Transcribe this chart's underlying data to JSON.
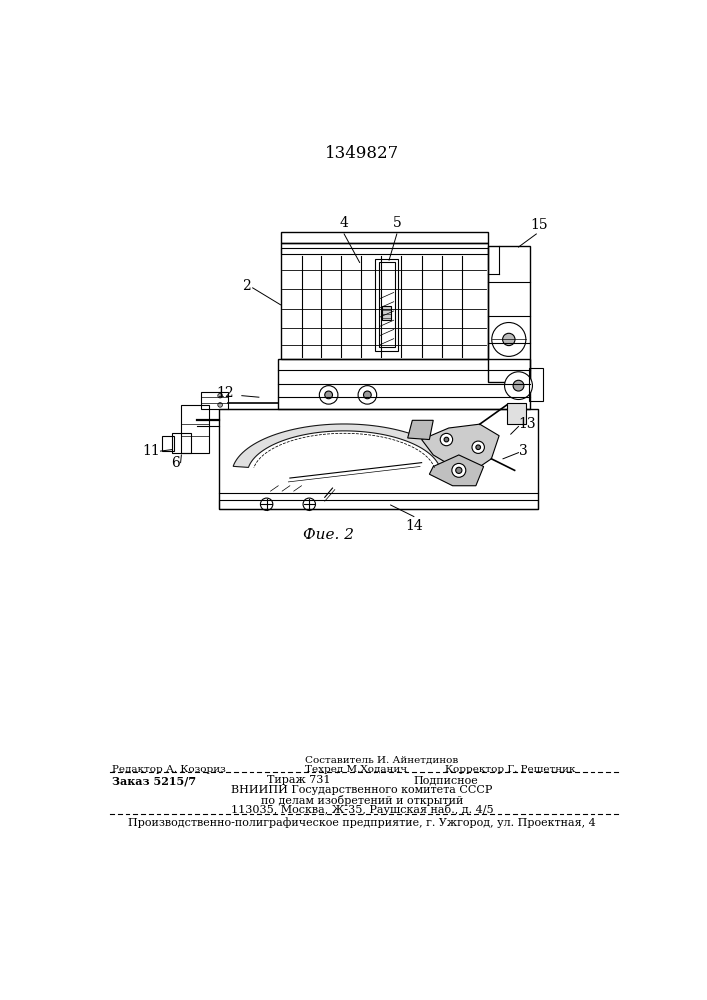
{
  "patent_number": "1349827",
  "fig_label": "Фие. 2",
  "background_color": "#ffffff",
  "text_color": "#000000",
  "footer_line0_col2": "Составитель И. Айнетдинов",
  "footer_line1_col1": "Редактор А. Козориз",
  "footer_line1_col2": "Техред М.Ходанич",
  "footer_line1_col3": "Корректор Г. Решетник",
  "footer_line2_col1": "Заказ 5215/7",
  "footer_line2_col2": "Тираж 731",
  "footer_line2_col3": "Подписное",
  "footer_line3": "ВНИИПИ Государственного комитета СССР",
  "footer_line4": "по делам изобретений и открытий",
  "footer_line5": "113035, Москва, Ж-35, Раушская наб., д. 4/5",
  "footer_line6": "Производственно-полиграфическое предприятие, г. Ужгород, ул. Проектная, 4"
}
